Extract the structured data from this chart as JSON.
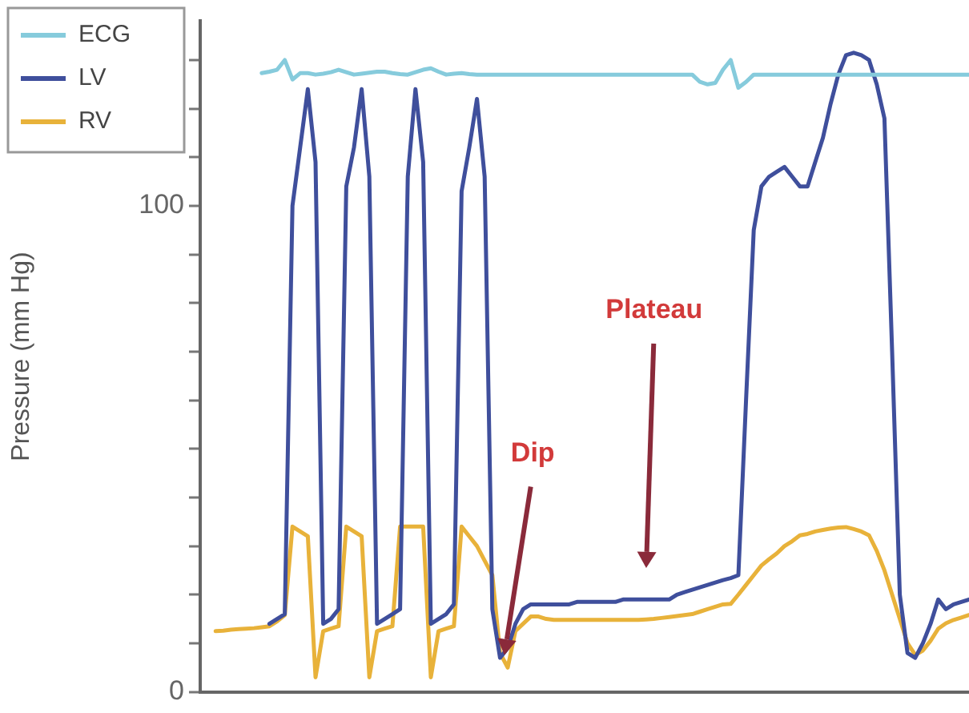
{
  "chart_data": {
    "type": "line",
    "ylabel": "Pressure (mm Hg)",
    "categories": [
      null,
      null,
      null,
      null,
      null,
      null,
      null,
      null,
      null,
      null,
      null,
      null,
      null,
      null,
      null,
      null,
      null,
      null,
      null,
      null,
      null,
      null,
      null,
      null,
      null,
      null,
      null,
      null,
      null,
      null,
      null,
      null,
      null,
      null,
      null,
      null,
      null,
      null,
      null,
      null,
      null,
      null,
      null,
      null,
      null,
      null,
      null,
      null,
      null,
      null,
      null,
      null,
      null,
      null,
      null,
      null,
      null,
      null,
      null,
      null,
      null,
      null,
      null,
      null,
      null,
      null,
      null,
      null,
      null,
      null,
      null,
      null,
      null,
      null,
      null,
      null,
      null,
      null,
      null,
      null,
      null,
      null,
      null,
      null,
      null,
      null,
      null,
      null,
      null,
      null,
      null,
      null,
      null,
      null,
      null,
      null,
      null,
      null,
      null,
      null,
      null
    ],
    "ylim": [
      0,
      138
    ],
    "yticks": [
      0,
      {
        "value": 10,
        "label": null
      },
      {
        "value": 20,
        "label": null
      },
      {
        "value": 30,
        "label": null
      },
      {
        "value": 40,
        "label": null
      },
      {
        "value": 50,
        "label": null
      },
      {
        "value": 60,
        "label": null
      },
      {
        "value": 70,
        "label": null
      },
      {
        "value": 80,
        "label": null
      },
      {
        "value": 90,
        "label": null
      },
      100,
      {
        "value": 110,
        "label": null
      },
      {
        "value": 120,
        "label": null
      },
      {
        "value": 130,
        "label": null
      }
    ],
    "tick_labels": "y",
    "grid": false,
    "legend": "top left",
    "marker": "none",
    "line_style": "solid",
    "annotations": [
      "Dip",
      "Plateau"
    ],
    "series": [
      {
        "name": "ECG",
        "color": "#86cbdc",
        "values": [
          null,
          null,
          null,
          null,
          null,
          null,
          null,
          null,
          127.3,
          127.6,
          128,
          130,
          126,
          127.3,
          127.3,
          127,
          127.2,
          127.5,
          128,
          127.5,
          127,
          127.2,
          127.4,
          127.6,
          127.6,
          127.3,
          127.1,
          127,
          127.5,
          128,
          128.3,
          127.6,
          127,
          127.2,
          127.3,
          127.1,
          127,
          127,
          127,
          127,
          127,
          127,
          127,
          127,
          127,
          127,
          127,
          127,
          127,
          127,
          127,
          127,
          127,
          127,
          127,
          127,
          127,
          127,
          127,
          127,
          127,
          127,
          127,
          127,
          127,
          125.5,
          125,
          125.3,
          128,
          130,
          124.3,
          125.5,
          127,
          127,
          127,
          127,
          127,
          127,
          127,
          127,
          127,
          127,
          127,
          127,
          127,
          127,
          127,
          127,
          127,
          127,
          127,
          127,
          127,
          127,
          127,
          127,
          127,
          127,
          127,
          127,
          127
        ]
      },
      {
        "name": "LV",
        "color": "#3f4f9c",
        "values": [
          null,
          null,
          null,
          null,
          null,
          null,
          null,
          null,
          null,
          14,
          15,
          16,
          100,
          112,
          124,
          109,
          14,
          15,
          17,
          104,
          112,
          124,
          106,
          14,
          15,
          16,
          17,
          106,
          124,
          109,
          14,
          15,
          16,
          18,
          103,
          112,
          122,
          106,
          17,
          7,
          9,
          14,
          17,
          18,
          18,
          18,
          18,
          18,
          18,
          18.5,
          18.5,
          18.5,
          18.5,
          18.5,
          18.5,
          19,
          19,
          19,
          19,
          19,
          19,
          19,
          20,
          20.5,
          21,
          21.5,
          22,
          22.5,
          23,
          23.4,
          24,
          60,
          95,
          104,
          106,
          107,
          108,
          106,
          104,
          104,
          109,
          114,
          121,
          127,
          131,
          131.5,
          131,
          130,
          125,
          118,
          70,
          20,
          8,
          7,
          10,
          14,
          19,
          17,
          18,
          18.5,
          19
        ]
      },
      {
        "name": "RV",
        "color": "#e8b23a",
        "values": [
          null,
          null,
          12.5,
          12.6,
          12.8,
          12.9,
          13,
          13.1,
          13.3,
          13.5,
          14.5,
          15.8,
          34,
          33,
          32,
          3,
          12.5,
          13,
          13.5,
          34,
          33,
          32,
          3,
          12.5,
          13,
          13.5,
          34,
          34,
          34,
          34,
          3,
          12.5,
          13,
          13.5,
          34,
          32,
          30,
          27,
          24,
          8,
          5,
          12.5,
          14,
          15.5,
          15.5,
          15,
          14.8,
          14.8,
          14.8,
          14.8,
          14.8,
          14.8,
          14.8,
          14.8,
          14.8,
          14.8,
          14.8,
          14.8,
          14.9,
          15,
          15.2,
          15.4,
          15.6,
          15.8,
          16,
          16.5,
          17,
          17.5,
          18,
          18.1,
          20,
          22,
          24,
          26,
          27.3,
          28.5,
          30,
          31,
          32.2,
          32.5,
          33,
          33.3,
          33.6,
          33.8,
          33.9,
          33.5,
          33,
          32.2,
          29,
          25,
          20,
          15,
          10,
          7.6,
          8.5,
          10.5,
          13,
          14.1,
          14.8,
          15.3,
          15.8
        ]
      }
    ]
  }
}
